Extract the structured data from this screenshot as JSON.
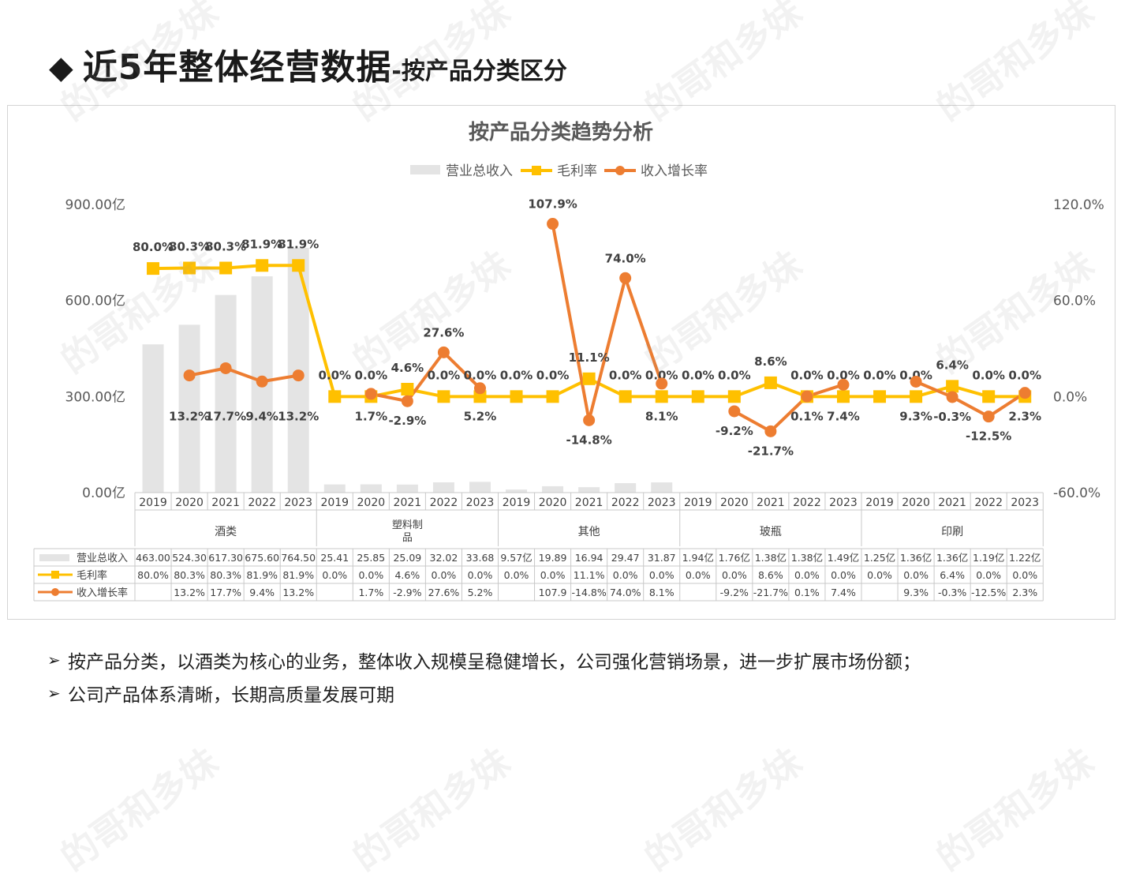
{
  "header": {
    "bullet_icon": "◆",
    "title": "近5年整体经营数据",
    "subtitle": "-按产品分类区分"
  },
  "watermark": "的哥和多妹",
  "colors": {
    "bars": "#e4e4e4",
    "margin_line": "#ffc000",
    "growth_line": "#ed7d31",
    "grid_border": "#c8c8c8"
  },
  "chart_data": {
    "type": "bar",
    "title": "按产品分类趋势分析",
    "legend_position": "top",
    "grid": false,
    "y_left": {
      "ticks": [
        "900.00亿",
        "600.00亿",
        "300.00亿",
        "0.00亿"
      ],
      "ylim": [
        0,
        900
      ]
    },
    "y_right": {
      "ticks": [
        "120.0%",
        "60.0%",
        "0.0%",
        "-60.0%"
      ],
      "ylim": [
        -60,
        120
      ]
    },
    "x_years": [
      "2019",
      "2020",
      "2021",
      "2022",
      "2023",
      "2019",
      "2020",
      "2021",
      "2022",
      "2023",
      "2019",
      "2020",
      "2021",
      "2022",
      "2023",
      "2019",
      "2020",
      "2021",
      "2022",
      "2023",
      "2019",
      "2020",
      "2021",
      "2022",
      "2023"
    ],
    "groups": [
      "酒类",
      "塑料制品",
      "其他",
      "玻瓶",
      "印刷"
    ],
    "series": [
      {
        "name": "营业总收入",
        "kind": "bar",
        "values": [
          463.0,
          524.3,
          617.3,
          675.6,
          764.5,
          25.41,
          25.85,
          25.09,
          32.02,
          33.68,
          9.57,
          19.89,
          16.94,
          29.47,
          31.87,
          1.94,
          1.76,
          1.38,
          1.38,
          1.49,
          1.25,
          1.36,
          1.36,
          1.19,
          1.22
        ],
        "table_labels": [
          "463.00",
          "524.30",
          "617.30",
          "675.60",
          "764.50",
          "25.41",
          "25.85",
          "25.09",
          "32.02",
          "33.68",
          "9.57亿",
          "19.89",
          "16.94",
          "29.47",
          "31.87",
          "1.94亿",
          "1.76亿",
          "1.38亿",
          "1.38亿",
          "1.49亿",
          "1.25亿",
          "1.36亿",
          "1.36亿",
          "1.19亿",
          "1.22亿"
        ]
      },
      {
        "name": "毛利率",
        "kind": "line",
        "values": [
          80.0,
          80.3,
          80.3,
          81.9,
          81.9,
          0.0,
          0.0,
          4.6,
          0.0,
          0.0,
          0.0,
          0.0,
          11.1,
          0.0,
          0.0,
          0.0,
          0.0,
          8.6,
          0.0,
          0.0,
          0.0,
          0.0,
          6.4,
          0.0,
          0.0
        ],
        "point_labels": [
          "80.0%",
          "80.3%",
          "80.3%",
          "81.9%",
          "81.9%",
          "0.0%",
          "0.0%",
          "4.6%",
          "0.0%",
          "0.0%",
          "0.0%",
          "0.0%",
          "11.1%",
          "0.0%",
          "0.0%",
          "0.0%",
          "0.0%",
          "8.6%",
          "0.0%",
          "0.0%",
          "0.0%",
          "0.0%",
          "6.4%",
          "0.0%",
          "0.0%"
        ],
        "table_labels": [
          "80.0%",
          "80.3%",
          "80.3%",
          "81.9%",
          "81.9%",
          "0.0%",
          "0.0%",
          "4.6%",
          "0.0%",
          "0.0%",
          "0.0%",
          "0.0%",
          "11.1%",
          "0.0%",
          "0.0%",
          "0.0%",
          "0.0%",
          "8.6%",
          "0.0%",
          "0.0%",
          "0.0%",
          "0.0%",
          "6.4%",
          "0.0%",
          "0.0%"
        ]
      },
      {
        "name": "收入增长率",
        "kind": "line",
        "values": [
          null,
          13.2,
          17.7,
          9.4,
          13.2,
          null,
          1.7,
          -2.9,
          27.6,
          5.2,
          null,
          107.9,
          -14.8,
          74.0,
          8.1,
          null,
          -9.2,
          -21.7,
          0.1,
          7.4,
          null,
          9.3,
          -0.3,
          -12.5,
          2.3
        ],
        "point_labels": [
          "",
          "13.2%",
          "17.7%",
          "9.4%",
          "13.2%",
          "",
          "1.7%",
          "-2.9%",
          "27.6%",
          "5.2%",
          "",
          "107.9%",
          "-14.8%",
          "74.0%",
          "8.1%",
          "",
          "-9.2%",
          "-21.7%",
          "0.1%",
          "7.4%",
          "",
          "9.3%",
          "-0.3%",
          "-12.5%",
          "2.3%"
        ],
        "table_labels": [
          "",
          "13.2%",
          "17.7%",
          "9.4%",
          "13.2%",
          "",
          "1.7%",
          "-2.9%",
          "27.6%",
          "5.2%",
          "",
          "107.9",
          "-14.8%",
          "74.0%",
          "8.1%",
          "",
          "-9.2%",
          "-21.7%",
          "0.1%",
          "7.4%",
          "",
          "9.3%",
          "-0.3%",
          "-12.5%",
          "2.3%"
        ]
      }
    ]
  },
  "bullets": [
    {
      "icon": "➢",
      "text": "按产品分类，以酒类为核心的业务，整体收入规模呈稳健增长，公司强化营销场景，进一步扩展市场份额；"
    },
    {
      "icon": "➢",
      "text": "公司产品体系清晰，长期高质量发展可期"
    }
  ]
}
